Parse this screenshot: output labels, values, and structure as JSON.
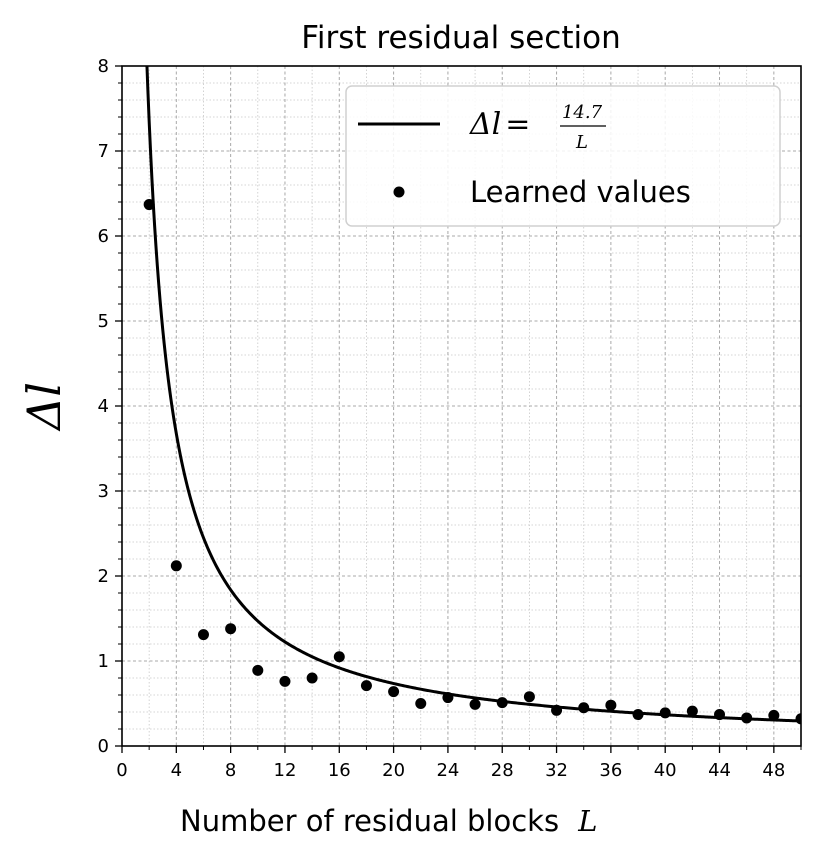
{
  "chart_data": {
    "type": "scatter",
    "title": "First residual section",
    "xlabel": "Number of residual blocks",
    "xlabel_symbol": "L",
    "ylabel": "Δl",
    "xlim": [
      0,
      50
    ],
    "ylim": [
      0,
      8
    ],
    "xticks": [
      0,
      4,
      8,
      12,
      16,
      20,
      24,
      28,
      32,
      36,
      40,
      44,
      48
    ],
    "yticks": [
      0,
      1,
      2,
      3,
      4,
      5,
      6,
      7,
      8
    ],
    "grid": true,
    "legend_position": "top-right",
    "series": [
      {
        "name": "Δl = 14.7 / L",
        "kind": "line",
        "formula_numerator": "14.7",
        "formula_denominator": "L",
        "coefficient": 14.7,
        "color": "#000000"
      },
      {
        "name": "Learned values",
        "kind": "scatter",
        "color": "#000000",
        "x": [
          2,
          4,
          6,
          8,
          10,
          12,
          14,
          16,
          18,
          20,
          22,
          24,
          26,
          28,
          30,
          32,
          34,
          36,
          38,
          40,
          42,
          44,
          46,
          48,
          50
        ],
        "y": [
          6.37,
          2.12,
          1.31,
          1.38,
          0.89,
          0.76,
          0.8,
          1.05,
          0.71,
          0.64,
          0.5,
          0.57,
          0.49,
          0.51,
          0.58,
          0.42,
          0.45,
          0.48,
          0.37,
          0.39,
          0.41,
          0.37,
          0.33,
          0.36,
          0.32
        ]
      }
    ]
  }
}
